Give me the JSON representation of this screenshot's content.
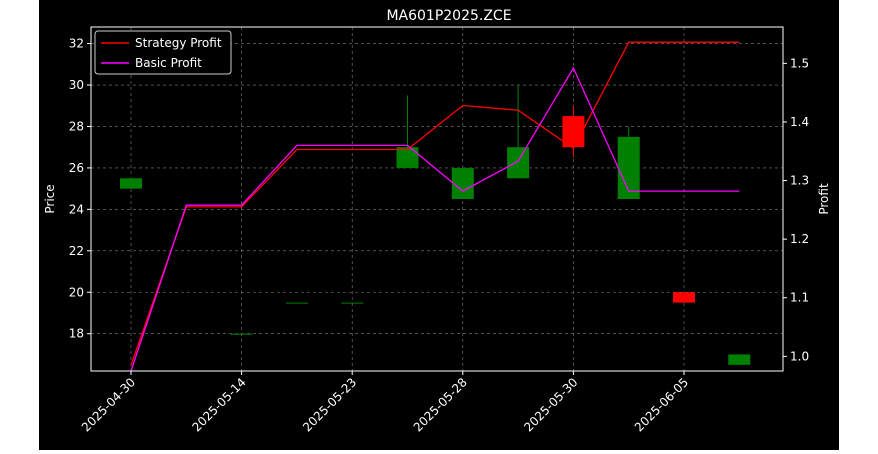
{
  "chart_data": {
    "type": "candlestick+line",
    "title": "MA601P2025.ZCE",
    "ylabel": "Price",
    "y2label": "Profit",
    "ylim": [
      16.2,
      32.8
    ],
    "y2lim": [
      0.975,
      1.562
    ],
    "yticks": [
      18,
      20,
      22,
      24,
      26,
      28,
      30,
      32
    ],
    "y2ticks": [
      1.0,
      1.1,
      1.2,
      1.3,
      1.4,
      1.5
    ],
    "x_tick_labels": [
      "2025-04-30",
      "2025-05-14",
      "2025-05-23",
      "2025-05-28",
      "2025-05-30",
      "2025-06-05"
    ],
    "x_tick_positions": [
      0,
      2,
      4,
      6,
      8,
      10
    ],
    "grid": true,
    "legend_placement": "top-left",
    "candles": [
      {
        "i": 0,
        "open": 25.0,
        "high": 25.5,
        "low": 25.0,
        "close": 25.5
      },
      {
        "i": 2,
        "open": 18.0,
        "high": 18.0,
        "low": 18.0,
        "close": 18.0
      },
      {
        "i": 3,
        "open": 19.5,
        "high": 19.5,
        "low": 19.5,
        "close": 19.5
      },
      {
        "i": 4,
        "open": 19.5,
        "high": 19.5,
        "low": 19.5,
        "close": 19.5
      },
      {
        "i": 5,
        "open": 26.0,
        "high": 29.5,
        "low": 26.0,
        "close": 27.0
      },
      {
        "i": 6,
        "open": 24.5,
        "high": 26.0,
        "low": 24.5,
        "close": 26.0
      },
      {
        "i": 7,
        "open": 25.5,
        "high": 30.0,
        "low": 25.5,
        "close": 27.0
      },
      {
        "i": 8,
        "open": 28.5,
        "high": 29.0,
        "low": 26.5,
        "close": 27.0
      },
      {
        "i": 9,
        "open": 24.5,
        "high": 28.0,
        "low": 24.5,
        "close": 27.5
      },
      {
        "i": 10,
        "open": 20.0,
        "high": 20.0,
        "low": 19.5,
        "close": 19.5
      },
      {
        "i": 11,
        "open": 16.5,
        "high": 17.0,
        "low": 16.5,
        "close": 17.0
      }
    ],
    "series": [
      {
        "name": "Strategy Profit",
        "color": "#ff0000",
        "x": [
          0,
          1,
          2,
          3,
          4,
          5,
          6,
          7,
          8,
          9,
          10,
          11
        ],
        "values": [
          0.985,
          1.255,
          1.255,
          1.353,
          1.353,
          1.353,
          1.428,
          1.42,
          1.355,
          1.536,
          1.536,
          1.536
        ]
      },
      {
        "name": "Basic Profit",
        "color": "#ff00ff",
        "x": [
          0,
          1,
          2,
          3,
          4,
          5,
          6,
          7,
          8,
          9,
          10,
          11
        ],
        "values": [
          0.975,
          1.258,
          1.258,
          1.36,
          1.36,
          1.36,
          1.282,
          1.333,
          1.492,
          1.282,
          1.282,
          1.282
        ]
      }
    ],
    "colors": {
      "up": "#008000",
      "down": "#ff0000",
      "grid": "#808080",
      "axis": "#ffffff"
    }
  }
}
